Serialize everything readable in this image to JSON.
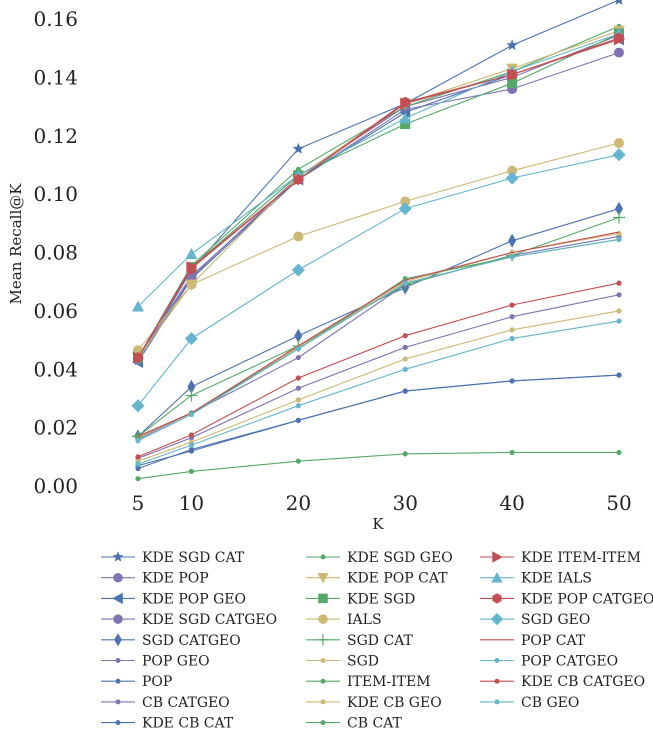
{
  "chart_data": {
    "type": "line",
    "title": "",
    "xlabel": "K",
    "ylabel": "Mean Recall@K",
    "x": [
      5,
      10,
      20,
      30,
      40,
      50
    ],
    "x_ticks": [
      "5",
      "10",
      "20",
      "30",
      "40",
      "50"
    ],
    "y_ticks": [
      "0.00",
      "0.02",
      "0.04",
      "0.06",
      "0.08",
      "0.10",
      "0.12",
      "0.14",
      "0.16"
    ],
    "ylim": [
      0,
      0.165
    ],
    "xlim": [
      5,
      50
    ],
    "grid": false,
    "legend_position": "bottom",
    "series": [
      {
        "name": "KDE SGD CAT",
        "color": "#4c72b0",
        "marker": "star",
        "values": [
          0.043,
          0.074,
          0.1155,
          0.131,
          0.151,
          0.1665
        ]
      },
      {
        "name": "KDE POP",
        "color": "#8172b2",
        "marker": "circle-lg",
        "values": [
          0.044,
          0.072,
          0.105,
          0.129,
          0.136,
          0.1485
        ]
      },
      {
        "name": "KDE POP GEO",
        "color": "#4c72b0",
        "marker": "triangle-left",
        "values": [
          0.0425,
          0.071,
          0.105,
          0.128,
          0.141,
          0.153
        ]
      },
      {
        "name": "KDE SGD CATGEO",
        "color": "#8172b2",
        "marker": "circle-lg",
        "values": [
          0.0435,
          0.0715,
          0.106,
          0.13,
          0.14,
          0.1545
        ]
      },
      {
        "name": "SGD CATGEO",
        "color": "#4c72b0",
        "marker": "diamond-thin",
        "values": [
          0.017,
          0.034,
          0.0515,
          0.068,
          0.084,
          0.095
        ]
      },
      {
        "name": "POP GEO",
        "color": "#8172b2",
        "marker": "dot",
        "values": [
          0.016,
          0.025,
          0.044,
          0.069,
          0.079,
          0.0855
        ]
      },
      {
        "name": "POP",
        "color": "#4c72b0",
        "marker": "dot",
        "values": [
          0.007,
          0.012,
          0.0225,
          0.0325,
          0.036,
          0.038
        ]
      },
      {
        "name": "CB CATGEO",
        "color": "#8172b2",
        "marker": "dot",
        "values": [
          0.0095,
          0.0165,
          0.0335,
          0.0475,
          0.058,
          0.0655
        ]
      },
      {
        "name": "KDE CB CAT",
        "color": "#4c72b0",
        "marker": "dot",
        "values": [
          0.006,
          0.0125,
          0.0225,
          0.0325,
          0.036,
          0.038
        ]
      },
      {
        "name": "KDE SGD GEO",
        "color": "#55a868",
        "marker": "dot",
        "values": [
          0.044,
          0.0755,
          0.1085,
          0.13,
          0.142,
          0.1575
        ]
      },
      {
        "name": "KDE POP CAT",
        "color": "#ccb974",
        "marker": "triangle-down",
        "values": [
          0.044,
          0.069,
          0.106,
          0.131,
          0.143,
          0.156
        ]
      },
      {
        "name": "KDE SGD",
        "color": "#55a868",
        "marker": "square",
        "values": [
          0.044,
          0.075,
          0.1065,
          0.124,
          0.138,
          0.155
        ]
      },
      {
        "name": "IALS",
        "color": "#ccb974",
        "marker": "circle-lg",
        "values": [
          0.0465,
          0.069,
          0.0855,
          0.0975,
          0.108,
          0.1175
        ]
      },
      {
        "name": "SGD CAT",
        "color": "#55a868",
        "marker": "plus",
        "values": [
          0.017,
          0.031,
          0.048,
          0.069,
          0.079,
          0.092
        ]
      },
      {
        "name": "SGD",
        "color": "#ccb974",
        "marker": "dot",
        "values": [
          0.0165,
          0.025,
          0.0475,
          0.07,
          0.08,
          0.0865
        ]
      },
      {
        "name": "ITEM-ITEM",
        "color": "#55a868",
        "marker": "dot",
        "values": [
          0.017,
          0.025,
          0.047,
          0.071,
          0.0785,
          0.0845
        ]
      },
      {
        "name": "KDE CB GEO",
        "color": "#ccb974",
        "marker": "dot",
        "values": [
          0.0085,
          0.015,
          0.0295,
          0.0435,
          0.0535,
          0.06
        ]
      },
      {
        "name": "CB CAT",
        "color": "#55a868",
        "marker": "dot",
        "values": [
          0.0025,
          0.005,
          0.0085,
          0.011,
          0.0115,
          0.0115
        ]
      },
      {
        "name": "KDE ITEM-ITEM",
        "color": "#c44e52",
        "marker": "triangle-right",
        "values": [
          0.044,
          0.075,
          0.105,
          0.131,
          0.141,
          0.153
        ]
      },
      {
        "name": "KDE IALS",
        "color": "#64b5cd",
        "marker": "triangle-up",
        "values": [
          0.0615,
          0.0795,
          0.1065,
          0.126,
          0.142,
          0.155
        ]
      },
      {
        "name": "KDE POP CATGEO",
        "color": "#c44e52",
        "marker": "hexagon",
        "values": [
          0.044,
          0.0745,
          0.105,
          0.1315,
          0.141,
          0.1535
        ]
      },
      {
        "name": "SGD GEO",
        "color": "#64b5cd",
        "marker": "diamond",
        "values": [
          0.0275,
          0.0505,
          0.074,
          0.095,
          0.1055,
          0.1135
        ]
      },
      {
        "name": "POP CAT",
        "color": "#c44e52",
        "marker": "none",
        "values": [
          0.017,
          0.025,
          0.048,
          0.0705,
          0.08,
          0.087
        ]
      },
      {
        "name": "POP CATGEO",
        "color": "#64b5cd",
        "marker": "dot",
        "values": [
          0.0155,
          0.0245,
          0.047,
          0.0695,
          0.0785,
          0.0845
        ]
      },
      {
        "name": "KDE CB CATGEO",
        "color": "#c44e52",
        "marker": "dot",
        "values": [
          0.01,
          0.0175,
          0.037,
          0.0515,
          0.062,
          0.0695
        ]
      },
      {
        "name": "CB GEO",
        "color": "#64b5cd",
        "marker": "dot",
        "values": [
          0.0075,
          0.014,
          0.0275,
          0.04,
          0.0505,
          0.0565
        ]
      }
    ]
  }
}
